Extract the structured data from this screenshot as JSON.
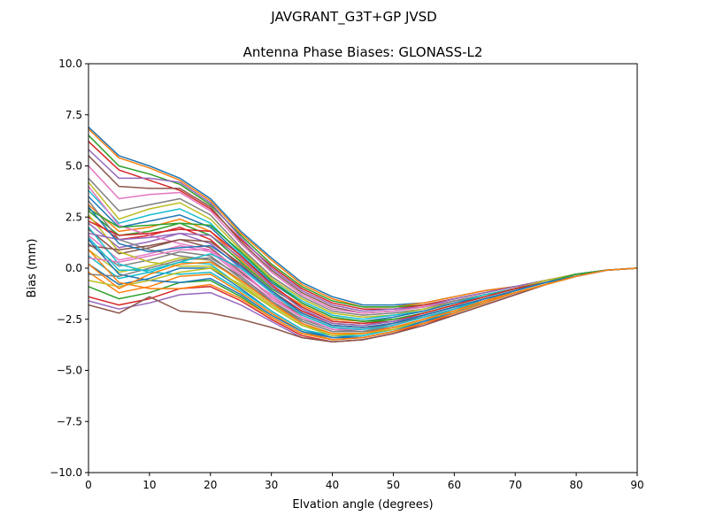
{
  "figure": {
    "suptitle": "JAVGRANT_G3T+GP JVSD"
  },
  "chart_data": {
    "type": "line",
    "title": "Antenna Phase Biases: GLONASS-L2",
    "xlabel": "Elvation angle (degrees)",
    "ylabel": "Bias (mm)",
    "xlim": [
      0,
      90
    ],
    "ylim": [
      -10,
      10
    ],
    "xticks": [
      0,
      10,
      20,
      30,
      40,
      50,
      60,
      70,
      80,
      90
    ],
    "xtick_labels": [
      "0",
      "10",
      "20",
      "30",
      "40",
      "50",
      "60",
      "70",
      "80",
      "90"
    ],
    "yticks": [
      -10,
      -7.5,
      -5,
      -2.5,
      0,
      2.5,
      5,
      7.5,
      10
    ],
    "ytick_labels": [
      "−10.0",
      "−7.5",
      "−5.0",
      "−2.5",
      "0.0",
      "2.5",
      "5.0",
      "7.5",
      "10.0"
    ],
    "grid": false,
    "legend": "none",
    "colors": [
      "#1f77b4",
      "#ff7f0e",
      "#2ca02c",
      "#d62728",
      "#9467bd",
      "#8c564b",
      "#e377c2",
      "#7f7f7f",
      "#bcbd22",
      "#17becf"
    ],
    "x": [
      0,
      5,
      10,
      15,
      20,
      25,
      30,
      35,
      40,
      45,
      50,
      55,
      60,
      65,
      70,
      75,
      80,
      85,
      90
    ],
    "series": [
      {
        "values": [
          6.9,
          5.5,
          5.0,
          4.4,
          3.4,
          1.8,
          0.5,
          -0.7,
          -1.4,
          -1.8,
          -1.8,
          -1.7,
          -1.4,
          -1.1,
          -0.9,
          -0.6,
          -0.3,
          -0.1,
          0
        ]
      },
      {
        "values": [
          6.8,
          5.4,
          4.9,
          4.3,
          3.3,
          1.7,
          0.4,
          -0.8,
          -1.5,
          -1.9,
          -1.9,
          -1.7,
          -1.4,
          -1.1,
          -0.9,
          -0.6,
          -0.3,
          -0.1,
          0
        ]
      },
      {
        "values": [
          6.5,
          5.0,
          4.6,
          4.1,
          3.1,
          1.6,
          0.2,
          -0.9,
          -1.6,
          -1.9,
          -1.9,
          -1.8,
          -1.5,
          -1.2,
          -0.9,
          -0.6,
          -0.3,
          -0.1,
          0
        ]
      },
      {
        "values": [
          6.2,
          4.8,
          4.3,
          3.8,
          2.9,
          1.4,
          0.1,
          -1.0,
          -1.7,
          -2.0,
          -2.0,
          -1.8,
          -1.5,
          -1.2,
          -0.9,
          -0.6,
          -0.3,
          -0.1,
          0
        ]
      },
      {
        "values": [
          5.8,
          4.4,
          4.4,
          4.2,
          3.2,
          1.5,
          0.0,
          -1.1,
          -1.8,
          -2.1,
          -2.0,
          -1.9,
          -1.5,
          -1.2,
          -0.9,
          -0.6,
          -0.3,
          -0.1,
          0
        ]
      },
      {
        "values": [
          5.5,
          4.0,
          3.9,
          3.9,
          3.0,
          1.3,
          -0.1,
          -1.2,
          -1.9,
          -2.2,
          -2.1,
          -1.9,
          -1.6,
          -1.3,
          -1.0,
          -0.6,
          -0.3,
          -0.1,
          0
        ]
      },
      {
        "values": [
          5.0,
          3.4,
          3.6,
          3.7,
          2.8,
          1.2,
          -0.2,
          -1.3,
          -2.0,
          -2.2,
          -2.1,
          -1.9,
          -1.6,
          -1.3,
          -1.0,
          -0.6,
          -0.3,
          -0.1,
          0
        ]
      },
      {
        "values": [
          4.4,
          2.8,
          3.1,
          3.4,
          2.6,
          1.0,
          -0.4,
          -1.4,
          -2.1,
          -2.3,
          -2.2,
          -2.0,
          -1.6,
          -1.3,
          -1.0,
          -0.6,
          -0.3,
          -0.1,
          0
        ]
      },
      {
        "values": [
          4.2,
          2.4,
          2.9,
          3.2,
          2.4,
          0.9,
          -0.5,
          -1.5,
          -2.2,
          -2.4,
          -2.3,
          -2.0,
          -1.7,
          -1.3,
          -1.0,
          -0.6,
          -0.3,
          -0.1,
          0
        ]
      },
      {
        "values": [
          3.8,
          2.2,
          2.6,
          2.9,
          2.2,
          0.7,
          -0.6,
          -1.6,
          -2.3,
          -2.5,
          -2.3,
          -2.1,
          -1.7,
          -1.3,
          -1.0,
          -0.7,
          -0.3,
          -0.1,
          0
        ]
      },
      {
        "values": [
          3.5,
          2.0,
          2.3,
          2.6,
          2.0,
          0.6,
          -0.7,
          -1.7,
          -2.4,
          -2.6,
          -2.4,
          -2.1,
          -1.7,
          -1.4,
          -1.0,
          -0.7,
          -0.3,
          -0.1,
          0
        ]
      },
      {
        "values": [
          3.1,
          1.8,
          2.0,
          2.4,
          1.8,
          0.4,
          -0.9,
          -1.8,
          -2.5,
          -2.6,
          -2.5,
          -2.2,
          -1.8,
          -1.4,
          -1.0,
          -0.7,
          -0.4,
          -0.1,
          0
        ]
      },
      {
        "values": [
          2.8,
          1.6,
          1.8,
          2.2,
          1.6,
          0.3,
          -1.0,
          -1.9,
          -2.6,
          -2.7,
          -2.5,
          -2.2,
          -1.8,
          -1.4,
          -1.0,
          -0.7,
          -0.4,
          -0.1,
          0
        ]
      },
      {
        "values": [
          2.5,
          1.4,
          1.6,
          2.0,
          1.4,
          0.1,
          -1.1,
          -2.1,
          -2.7,
          -2.8,
          -2.6,
          -2.3,
          -1.9,
          -1.5,
          -1.1,
          -0.7,
          -0.4,
          -0.1,
          0
        ]
      },
      {
        "values": [
          2.2,
          1.0,
          1.3,
          1.7,
          1.2,
          0.0,
          -1.2,
          -2.2,
          -2.8,
          -2.9,
          -2.7,
          -2.3,
          -1.9,
          -1.5,
          -1.1,
          -0.7,
          -0.4,
          -0.1,
          0
        ]
      },
      {
        "values": [
          1.9,
          0.7,
          1.0,
          1.4,
          1.0,
          -0.2,
          -1.4,
          -2.3,
          -2.9,
          -3.0,
          -2.7,
          -2.4,
          -2.0,
          -1.5,
          -1.1,
          -0.7,
          -0.4,
          -0.1,
          0
        ]
      },
      {
        "values": [
          1.6,
          0.4,
          0.7,
          1.1,
          0.8,
          -0.4,
          -1.5,
          -2.4,
          -3.0,
          -3.0,
          -2.8,
          -2.4,
          -2.0,
          -1.6,
          -1.1,
          -0.7,
          -0.4,
          -0.1,
          0
        ]
      },
      {
        "values": [
          1.2,
          0.1,
          0.4,
          0.8,
          0.6,
          -0.5,
          -1.7,
          -2.6,
          -3.1,
          -3.1,
          -2.9,
          -2.5,
          -2.1,
          -1.6,
          -1.2,
          -0.8,
          -0.4,
          -0.1,
          0
        ]
      },
      {
        "values": [
          0.9,
          -0.2,
          0.1,
          0.5,
          0.4,
          -0.7,
          -1.8,
          -2.7,
          -3.2,
          -3.2,
          -2.9,
          -2.5,
          -2.1,
          -1.6,
          -1.2,
          -0.8,
          -0.4,
          -0.1,
          0
        ]
      },
      {
        "values": [
          0.6,
          -0.5,
          -0.2,
          0.3,
          0.2,
          -0.9,
          -1.9,
          -2.8,
          -3.3,
          -3.3,
          -3.0,
          -2.6,
          -2.1,
          -1.7,
          -1.2,
          -0.8,
          -0.4,
          -0.1,
          0
        ]
      },
      {
        "values": [
          0.2,
          -0.8,
          -0.5,
          0.0,
          0.0,
          -1.0,
          -2.1,
          -3.0,
          -3.4,
          -3.3,
          -3.0,
          -2.6,
          -2.2,
          -1.7,
          -1.2,
          -0.8,
          -0.4,
          -0.1,
          0
        ]
      },
      {
        "values": [
          -0.2,
          -1.2,
          -0.9,
          -0.4,
          -0.3,
          -1.2,
          -2.2,
          -3.1,
          -3.5,
          -3.4,
          -3.1,
          -2.7,
          -2.2,
          -1.7,
          -1.2,
          -0.8,
          -0.4,
          -0.1,
          0
        ]
      },
      {
        "values": [
          -0.9,
          -1.5,
          -1.2,
          -0.7,
          -0.6,
          -1.4,
          -2.4,
          -3.2,
          -3.5,
          -3.4,
          -3.1,
          -2.7,
          -2.2,
          -1.7,
          -1.2,
          -0.8,
          -0.4,
          -0.1,
          0
        ]
      },
      {
        "values": [
          -1.4,
          -1.8,
          -1.5,
          -1.0,
          -0.9,
          -1.6,
          -2.5,
          -3.3,
          -3.6,
          -3.5,
          -3.2,
          -2.7,
          -2.3,
          -1.8,
          -1.3,
          -0.8,
          -0.4,
          -0.1,
          0
        ]
      },
      {
        "values": [
          -1.6,
          -2.0,
          -1.7,
          -1.3,
          -1.2,
          -1.8,
          -2.6,
          -3.4,
          -3.6,
          -3.5,
          -3.2,
          -2.8,
          -2.3,
          -1.8,
          -1.3,
          -0.8,
          -0.4,
          -0.1,
          0
        ]
      },
      {
        "values": [
          -1.8,
          -2.2,
          -1.4,
          -2.1,
          -2.2,
          -2.5,
          -2.9,
          -3.4,
          -3.6,
          -3.5,
          -3.2,
          -2.8,
          -2.3,
          -1.8,
          -1.3,
          -0.8,
          -0.4,
          -0.1,
          0
        ]
      },
      {
        "values": [
          4.0,
          2.1,
          1.6,
          1.2,
          0.9,
          -0.3,
          -1.3,
          -2.2,
          -2.8,
          -2.9,
          -2.7,
          -2.3,
          -1.9,
          -1.5,
          -1.1,
          -0.7,
          -0.4,
          -0.1,
          0
        ]
      },
      {
        "values": [
          3.3,
          1.4,
          0.9,
          0.6,
          0.4,
          -0.6,
          -1.6,
          -2.5,
          -3.0,
          -3.1,
          -2.8,
          -2.4,
          -2.0,
          -1.6,
          -1.2,
          -0.8,
          -0.4,
          -0.1,
          0
        ]
      },
      {
        "values": [
          2.6,
          0.8,
          0.3,
          0.1,
          0.1,
          -0.9,
          -1.9,
          -2.8,
          -3.2,
          -3.2,
          -2.9,
          -2.5,
          -2.1,
          -1.6,
          -1.2,
          -0.8,
          -0.4,
          -0.1,
          0
        ]
      },
      {
        "values": [
          2.0,
          0.2,
          -0.2,
          -0.3,
          -0.2,
          -1.1,
          -2.1,
          -3.0,
          -3.3,
          -3.3,
          -3.0,
          -2.6,
          -2.1,
          -1.7,
          -1.2,
          -0.8,
          -0.4,
          -0.1,
          0
        ]
      },
      {
        "values": [
          1.4,
          -0.3,
          -0.6,
          -0.7,
          -0.5,
          -1.3,
          -2.3,
          -3.1,
          -3.4,
          -3.4,
          -3.1,
          -2.6,
          -2.2,
          -1.7,
          -1.2,
          -0.8,
          -0.4,
          -0.1,
          0
        ]
      },
      {
        "values": [
          0.9,
          -0.7,
          -1.0,
          -1.0,
          -0.8,
          -1.5,
          -2.4,
          -3.2,
          -3.5,
          -3.4,
          -3.1,
          -2.7,
          -2.2,
          -1.7,
          -1.2,
          -0.8,
          -0.4,
          -0.1,
          0
        ]
      },
      {
        "values": [
          2.9,
          2.0,
          2.1,
          2.2,
          2.1,
          0.8,
          -0.6,
          -1.7,
          -2.4,
          -2.6,
          -2.5,
          -2.2,
          -1.8,
          -1.4,
          -1.0,
          -0.7,
          -0.3,
          -0.1,
          0
        ]
      },
      {
        "values": [
          2.3,
          1.6,
          1.7,
          1.9,
          1.8,
          0.6,
          -0.8,
          -1.9,
          -2.6,
          -2.7,
          -2.6,
          -2.2,
          -1.8,
          -1.4,
          -1.0,
          -0.7,
          -0.4,
          -0.1,
          0
        ]
      },
      {
        "values": [
          1.7,
          1.4,
          1.5,
          1.7,
          1.6,
          0.5,
          -0.9,
          -2.0,
          -2.7,
          -2.8,
          -2.6,
          -2.3,
          -1.9,
          -1.5,
          -1.1,
          -0.7,
          -0.4,
          -0.1,
          0
        ]
      },
      {
        "values": [
          1.1,
          0.9,
          1.1,
          1.4,
          1.3,
          0.2,
          -1.1,
          -2.2,
          -2.8,
          -2.9,
          -2.7,
          -2.3,
          -1.9,
          -1.5,
          -1.1,
          -0.7,
          -0.4,
          -0.1,
          0
        ]
      },
      {
        "values": [
          0.5,
          0.3,
          0.6,
          0.9,
          0.9,
          -0.1,
          -1.4,
          -2.4,
          -3.0,
          -3.0,
          -2.8,
          -2.4,
          -2.0,
          -1.5,
          -1.1,
          -0.7,
          -0.4,
          -0.1,
          0
        ]
      },
      {
        "values": [
          -0.3,
          -0.4,
          0.0,
          0.4,
          0.5,
          -0.4,
          -1.6,
          -2.6,
          -3.1,
          -3.1,
          -2.9,
          -2.5,
          -2.0,
          -1.6,
          -1.1,
          -0.7,
          -0.4,
          -0.1,
          0
        ]
      },
      {
        "values": [
          -0.6,
          -0.9,
          -0.6,
          -0.2,
          0.0,
          -0.8,
          -1.9,
          -2.8,
          -3.3,
          -3.2,
          -3.0,
          -2.5,
          -2.1,
          -1.6,
          -1.2,
          -0.8,
          -0.4,
          -0.1,
          0
        ]
      },
      {
        "values": [
          1.5,
          -0.1,
          -0.1,
          0.3,
          0.7,
          0.0,
          -1.2,
          -2.3,
          -2.9,
          -3.0,
          -2.8,
          -2.4,
          -2.0,
          -1.5,
          -1.1,
          -0.7,
          -0.4,
          -0.1,
          0
        ]
      },
      {
        "values": [
          3.0,
          1.2,
          0.8,
          1.0,
          1.1,
          0.1,
          -1.1,
          -2.2,
          -2.8,
          -2.9,
          -2.7,
          -2.3,
          -1.9,
          -1.5,
          -1.1,
          -0.7,
          -0.4,
          -0.1,
          0
        ]
      },
      {
        "values": [
          0.2,
          -1.0,
          -0.3,
          0.2,
          0.3,
          -0.6,
          -1.7,
          -2.7,
          -3.2,
          -3.2,
          -2.9,
          -2.5,
          -2.1,
          -1.6,
          -1.2,
          -0.8,
          -0.4,
          -0.1,
          0
        ]
      }
    ]
  }
}
